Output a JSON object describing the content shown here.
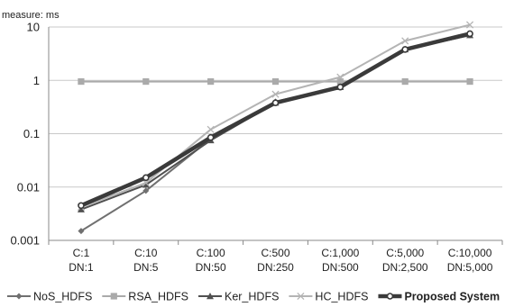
{
  "chart_data": {
    "type": "line",
    "unit_label": "measure: ms",
    "y_scale": "log",
    "ylim": [
      0.001,
      10
    ],
    "y_ticks": [
      "10",
      "1",
      "0.1",
      "0.01",
      "0.001"
    ],
    "y_tick_values": [
      10,
      1,
      0.1,
      0.01,
      0.001
    ],
    "categories": [
      [
        "C:1",
        "DN:1"
      ],
      [
        "C:10",
        "DN:5"
      ],
      [
        "C:100",
        "DN:50"
      ],
      [
        "C:500",
        "DN:250"
      ],
      [
        "C:1,000",
        "DN:500"
      ],
      [
        "C:5,000",
        "DN:2,500"
      ],
      [
        "C:10,000",
        "DN:5,000"
      ]
    ],
    "grid": true,
    "legend_position": "bottom",
    "series": [
      {
        "name": "NoS_HDFS",
        "color": "#707070",
        "marker": "diamond",
        "values": [
          0.0015,
          0.0085,
          0.08,
          0.4,
          0.75,
          3.8,
          7.0
        ]
      },
      {
        "name": "RSA_HDFS",
        "color": "#aaaaaa",
        "marker": "square",
        "values": [
          0.95,
          0.95,
          0.95,
          0.95,
          0.95,
          0.95,
          0.95
        ]
      },
      {
        "name": "Ker_HDFS",
        "color": "#505050",
        "marker": "triangle",
        "values": [
          0.0038,
          0.011,
          0.075,
          0.38,
          0.75,
          3.8,
          7.0
        ]
      },
      {
        "name": "HC_HDFS",
        "color": "#b4b4b4",
        "marker": "x",
        "values": [
          0.0042,
          0.012,
          0.12,
          0.55,
          1.15,
          5.5,
          11.0
        ]
      },
      {
        "name": "Proposed System",
        "color": "#3a3a3a",
        "marker": "circle",
        "bold": true,
        "values": [
          0.0045,
          0.015,
          0.085,
          0.38,
          0.75,
          3.8,
          7.5
        ]
      }
    ]
  }
}
